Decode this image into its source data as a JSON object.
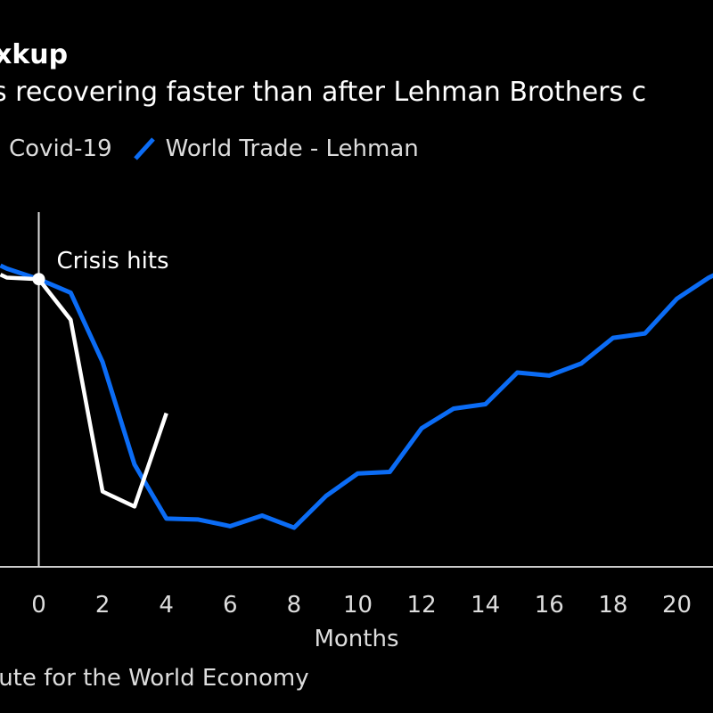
{
  "chart_data": {
    "type": "line",
    "title": "xkup",
    "subtitle": "s recovering faster than after Lehman Brothers c",
    "xlabel": "Months",
    "xlim": [
      -1.2,
      21.2
    ],
    "ylim": [
      0,
      1
    ],
    "x_ticks": [
      0,
      2,
      4,
      6,
      8,
      10,
      12,
      14,
      16,
      18,
      20
    ],
    "grid": false,
    "legend_position": "top-left",
    "series": [
      {
        "name": "Covid-19",
        "color": "#ffffff",
        "x": [
          -1.2,
          -1,
          0,
          1,
          2,
          3,
          4
        ],
        "y": [
          0.97,
          0.96,
          0.955,
          0.82,
          0.25,
          0.2,
          0.51
        ]
      },
      {
        "name": "World Trade - Lehman",
        "color": "#0b6cf5",
        "x": [
          -1.2,
          -1,
          0,
          1,
          2,
          3,
          4,
          5,
          6,
          7,
          8,
          9,
          10,
          11,
          12,
          13,
          14,
          15,
          16,
          17,
          18,
          19,
          20,
          21,
          21.2
        ],
        "y": [
          1.0,
          0.99,
          0.955,
          0.91,
          0.68,
          0.34,
          0.16,
          0.157,
          0.135,
          0.17,
          0.13,
          0.235,
          0.31,
          0.315,
          0.46,
          0.525,
          0.54,
          0.645,
          0.635,
          0.675,
          0.76,
          0.775,
          0.89,
          0.96,
          0.97
        ]
      }
    ],
    "annotations": [
      {
        "text": "Crisis hits",
        "x": 0,
        "y": 0.955
      }
    ],
    "source": "tute for the World Economy"
  }
}
